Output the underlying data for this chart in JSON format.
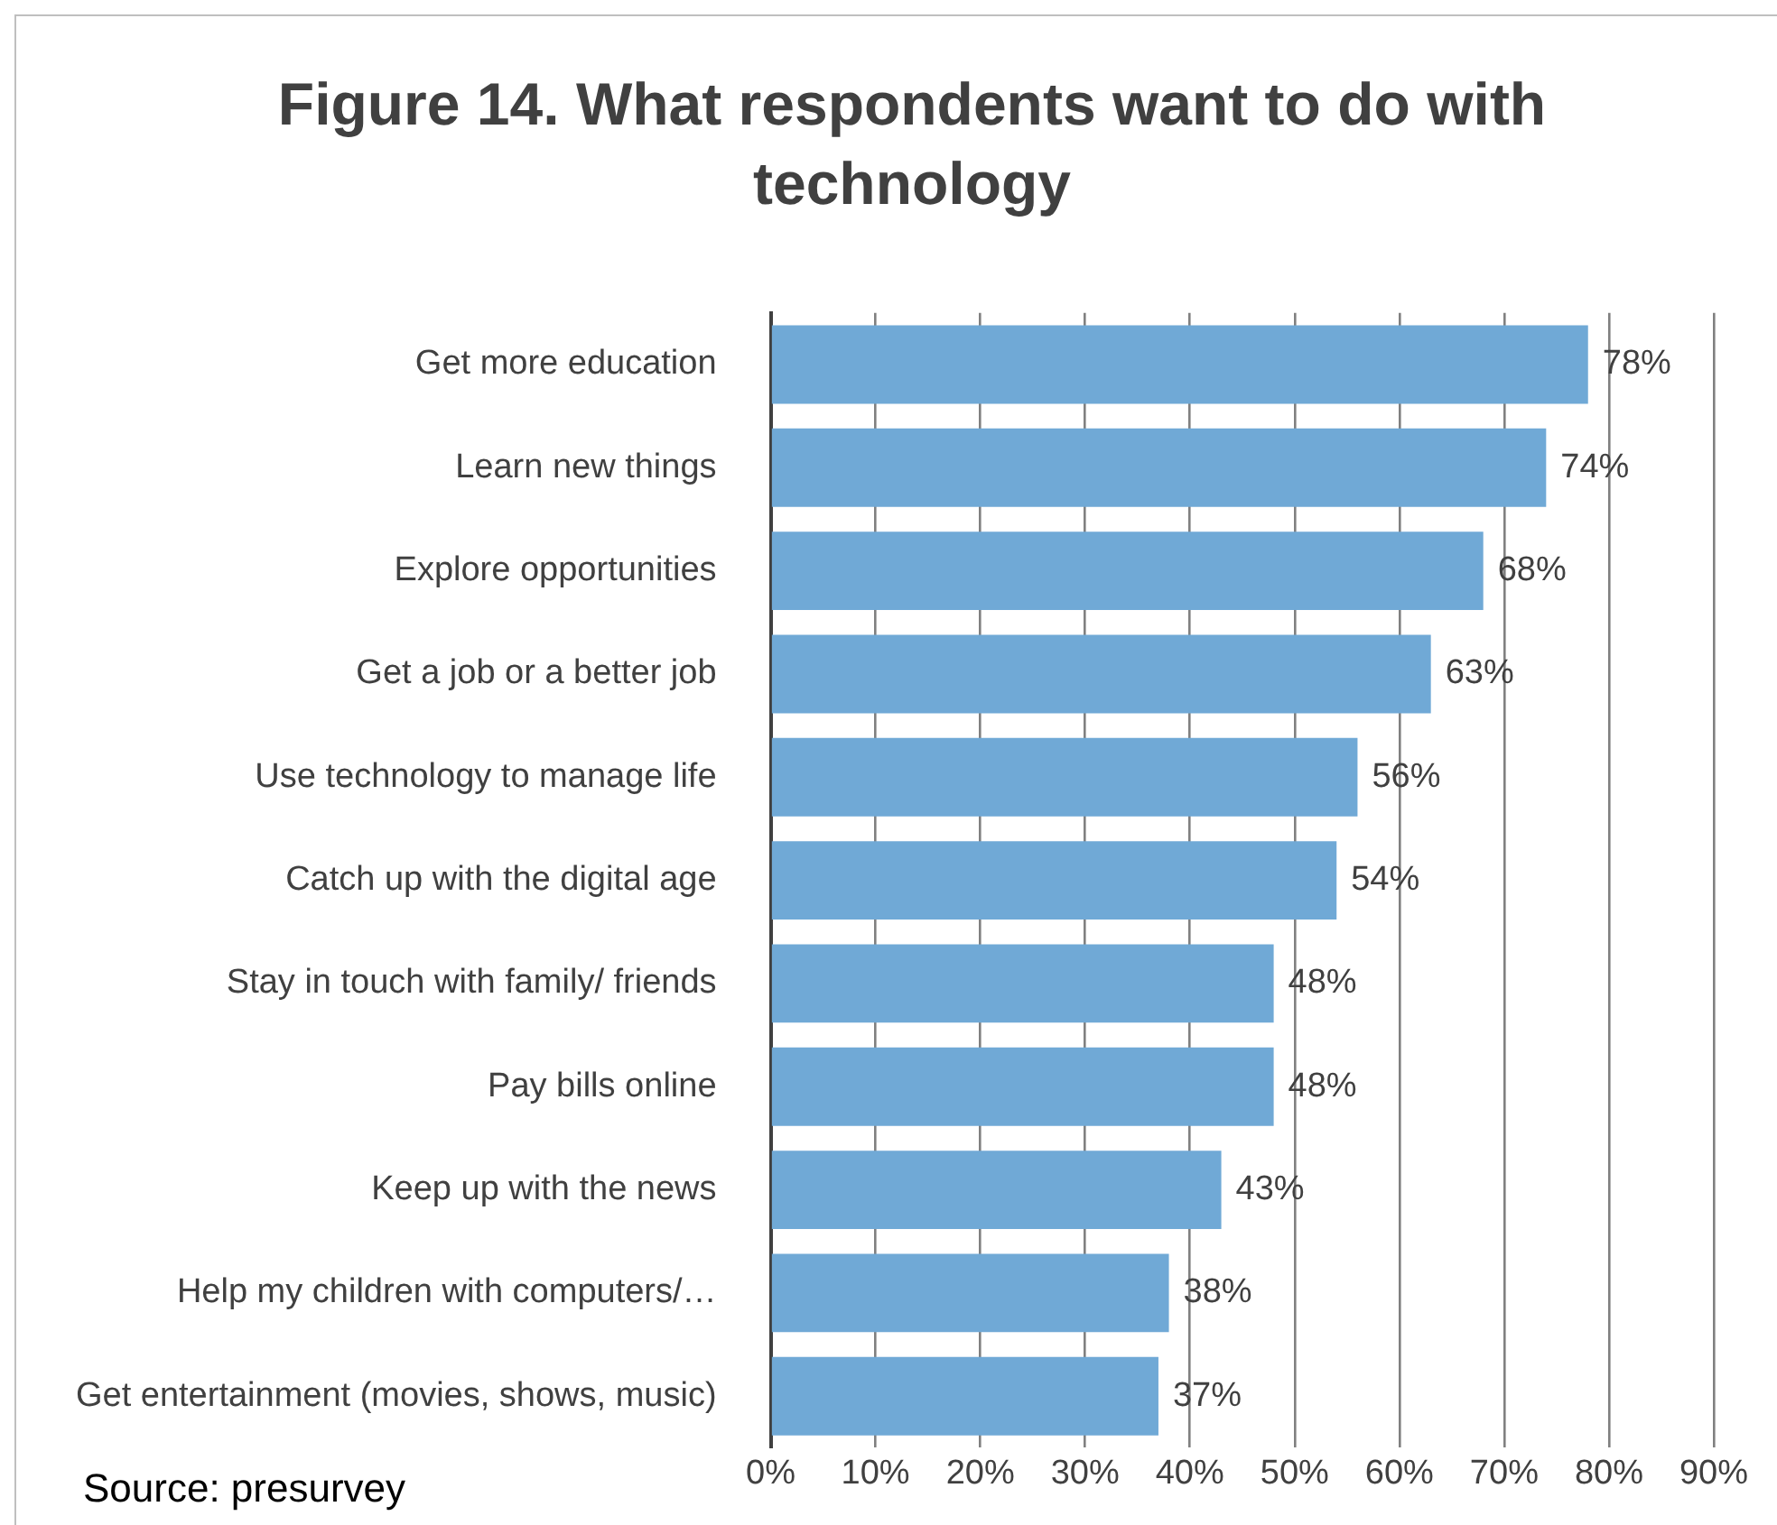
{
  "chart_data": {
    "type": "bar",
    "orientation": "horizontal",
    "title": "Figure 14. What respondents want to do with technology",
    "categories": [
      "Get more education",
      "Learn new things",
      "Explore opportunities",
      "Get a job or a better job",
      "Use technology to manage life",
      "Catch up with the digital age",
      "Stay in touch with family/ friends",
      "Pay bills online",
      "Keep up with the news",
      "Help my children with computers/…",
      "Get entertainment (movies, shows, music)"
    ],
    "values": [
      78,
      74,
      68,
      63,
      56,
      54,
      48,
      48,
      43,
      38,
      37
    ],
    "value_labels": [
      "78%",
      "74%",
      "68%",
      "63%",
      "56%",
      "54%",
      "48%",
      "48%",
      "43%",
      "38%",
      "37%"
    ],
    "color": "#70a9d6",
    "xlim": [
      0,
      90
    ],
    "xticks": [
      {
        "value": 0,
        "label": "0%"
      },
      {
        "value": 10,
        "label": "10%"
      },
      {
        "value": 20,
        "label": "20%"
      },
      {
        "value": 30,
        "label": "30%"
      },
      {
        "value": 40,
        "label": "40%"
      },
      {
        "value": 50,
        "label": "50%"
      },
      {
        "value": 60,
        "label": "60%"
      },
      {
        "value": 70,
        "label": "70%"
      },
      {
        "value": 80,
        "label": "80%"
      },
      {
        "value": 90,
        "label": "90%"
      }
    ],
    "grid": "x",
    "legend": false,
    "annotations": [
      "Source: presurvey"
    ]
  }
}
